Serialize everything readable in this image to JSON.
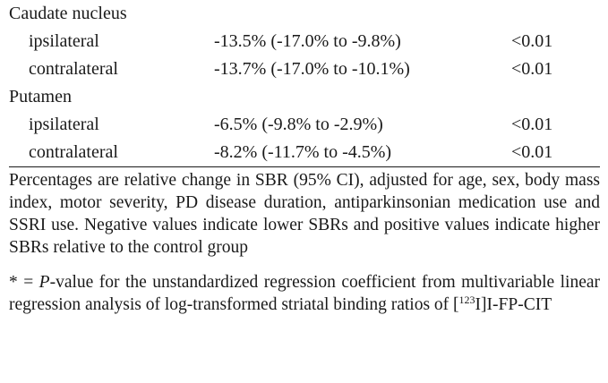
{
  "table": {
    "groups": [
      {
        "label": "Caudate nucleus",
        "rows": [
          {
            "side": "ipsilateral",
            "estimate": "-13.5% (-17.0% to -9.8%)",
            "p": "<0.01"
          },
          {
            "side": "contralateral",
            "estimate": "-13.7% (-17.0% to -10.1%)",
            "p": "<0.01"
          }
        ]
      },
      {
        "label": "Putamen",
        "rows": [
          {
            "side": "ipsilateral",
            "estimate": "-6.5% (-9.8% to -2.9%)",
            "p": "<0.01"
          },
          {
            "side": "contralateral",
            "estimate": "-8.2% (-11.7% to -4.5%)",
            "p": "<0.01"
          }
        ]
      }
    ]
  },
  "notes": {
    "description": "Percentages are relative change in SBR (95% CI), adjusted for age, sex, body mass index, motor severity, PD disease duration, antiparkinsonian medication use and SSRI use. Negative values indicate lower SBRs and positive values indicate higher SBRs relative to the control group",
    "footnote": {
      "prefix": "* = ",
      "italic": "P",
      "middle": "-value for the unstandardized regression coefficient from multivariable linear regression analysis of log-transformed striatal binding ratios of [",
      "superscript": "123",
      "suffix": "I]I-FP-CIT"
    }
  }
}
